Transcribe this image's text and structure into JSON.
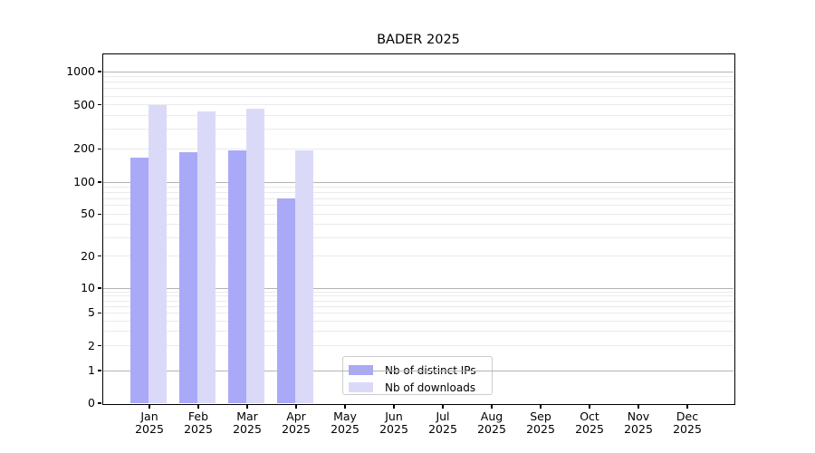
{
  "title": "BADER 2025",
  "legend": {
    "items": [
      {
        "label": "Nb of distinct IPs",
        "color": "#a9a9f8"
      },
      {
        "label": "Nb of downloads",
        "color": "#dadaf8"
      }
    ]
  },
  "chart_data": {
    "type": "bar",
    "title": "BADER 2025",
    "categories": [
      "Jan 2025",
      "Feb 2025",
      "Mar 2025",
      "Apr 2025",
      "May 2025",
      "Jun 2025",
      "Jul 2025",
      "Aug 2025",
      "Sep 2025",
      "Oct 2025",
      "Nov 2025",
      "Dec 2025"
    ],
    "month_labels": [
      "Jan",
      "Feb",
      "Mar",
      "Apr",
      "May",
      "Jun",
      "Jul",
      "Aug",
      "Sep",
      "Oct",
      "Nov",
      "Dec"
    ],
    "year_label": "2025",
    "series": [
      {
        "name": "Nb of distinct IPs",
        "color": "#a9a9f8",
        "values": [
          166,
          186,
          193,
          70,
          0,
          0,
          0,
          0,
          0,
          0,
          0,
          0
        ]
      },
      {
        "name": "Nb of downloads",
        "color": "#dadaf8",
        "values": [
          500,
          436,
          461,
          193,
          0,
          0,
          0,
          0,
          0,
          0,
          0,
          0
        ]
      }
    ],
    "xlabel": "",
    "ylabel": "",
    "y_axis": {
      "scale": "log",
      "tick_values": [
        0,
        1,
        2,
        5,
        10,
        20,
        50,
        100,
        200,
        500,
        1000
      ],
      "ylim": [
        0,
        1500
      ]
    },
    "grid": true,
    "legend_position": "lower center"
  },
  "colors": {
    "background": "#ffffff",
    "bar_distinct_ips": "#a9a9f8",
    "bar_downloads": "#dadaf8",
    "grid_major": "#b3b3b3",
    "grid_minor": "#eaeaee",
    "axis": "#000000",
    "text": "#000000",
    "legend_border": "#cccccc"
  }
}
